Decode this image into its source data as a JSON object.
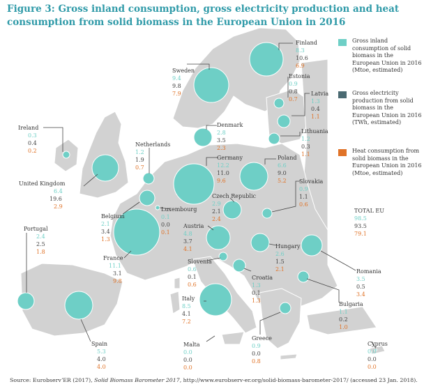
{
  "title": "Figure 3: Gross inland consumption, gross electricity production and heat consumption from solid biomass in the European Union in 2016",
  "colors": {
    "title": "#2f9aa8",
    "consumption": "#6ecfc6",
    "electricity": "#4a6a72",
    "heat": "#e07328",
    "land": "#d2d2d2",
    "sea": "#ffffff"
  },
  "legend": [
    {
      "color": "#6ecfc6",
      "text": "Gross inland consumption of solid biomass in the European Union in 2016 (Mtoe, estimated)"
    },
    {
      "color": "#4a6a72",
      "text": "Gross electricity production from solid biomass in the European Union in 2016 (TWh, estimated)"
    },
    {
      "color": "#e07328",
      "text": "Heat consumption from solid biomass in the European Union in 2016 (Mtoe, estimated)"
    }
  ],
  "total": {
    "label": "TOTAL EU",
    "consumption": "98.5",
    "electricity": "93.5",
    "heat": "79.1"
  },
  "countries": [
    {
      "name": "Finland",
      "consumption": "8.3",
      "electricity": "10.6",
      "heat": "6.9"
    },
    {
      "name": "Sweden",
      "consumption": "9.4",
      "electricity": "9.8",
      "heat": "7.9"
    },
    {
      "name": "Estonia",
      "consumption": "0.9",
      "electricity": "0.8",
      "heat": "0.7"
    },
    {
      "name": "Latvia",
      "consumption": "1.3",
      "electricity": "0.4",
      "heat": "1.1"
    },
    {
      "name": "Lithuania",
      "consumption": "1.2",
      "electricity": "0.3",
      "heat": "1.1"
    },
    {
      "name": "Denmark",
      "consumption": "2.8",
      "electricity": "3.5",
      "heat": "2.3"
    },
    {
      "name": "Ireland",
      "consumption": "0.3",
      "electricity": "0.4",
      "heat": "0.2"
    },
    {
      "name": "Netherlands",
      "consumption": "1.2",
      "electricity": "1.9",
      "heat": "0.7"
    },
    {
      "name": "Germany",
      "consumption": "12.2",
      "electricity": "11.0",
      "heat": "9.6"
    },
    {
      "name": "Poland",
      "consumption": "6.6",
      "electricity": "9.0",
      "heat": "5.2"
    },
    {
      "name": "United Kingdom",
      "consumption": "6.4",
      "electricity": "19.6",
      "heat": "2.9"
    },
    {
      "name": "Slovakia",
      "consumption": "0.9",
      "electricity": "1.1",
      "heat": "0.6"
    },
    {
      "name": "Czech Republic",
      "consumption": "2.9",
      "electricity": "2.1",
      "heat": "2.4"
    },
    {
      "name": "Belgium",
      "consumption": "2.1",
      "electricity": "3.4",
      "heat": "1.3"
    },
    {
      "name": "Luxembourg",
      "consumption": "0.1",
      "electricity": "0.0",
      "heat": "0.1"
    },
    {
      "name": "Portugal",
      "consumption": "2.4",
      "electricity": "2.5",
      "heat": "1.8"
    },
    {
      "name": "Austria",
      "consumption": "4.8",
      "electricity": "3.7",
      "heat": "4.1"
    },
    {
      "name": "Hungary",
      "consumption": "2.6",
      "electricity": "1.5",
      "heat": "2.1"
    },
    {
      "name": "France",
      "consumption": "11.1",
      "electricity": "3.1",
      "heat": "9.8"
    },
    {
      "name": "Slovenia",
      "consumption": "0.6",
      "electricity": "0.1",
      "heat": "0.6"
    },
    {
      "name": "Romania",
      "consumption": "3.5",
      "electricity": "0.5",
      "heat": "3.4"
    },
    {
      "name": "Croatia",
      "consumption": "1.3",
      "electricity": "0.1",
      "heat": "1.3"
    },
    {
      "name": "Italy",
      "consumption": "8.5",
      "electricity": "4.1",
      "heat": "7.2"
    },
    {
      "name": "Bulgaria",
      "consumption": "1.1",
      "electricity": "0.2",
      "heat": "1.0"
    },
    {
      "name": "Spain",
      "consumption": "5.3",
      "electricity": "4.0",
      "heat": "4.0"
    },
    {
      "name": "Greece",
      "consumption": "0.9",
      "electricity": "0.0",
      "heat": "0.8"
    },
    {
      "name": "Malta",
      "consumption": "0.0",
      "electricity": "0.0",
      "heat": "0.0"
    },
    {
      "name": "Cyprus",
      "consumption": "0.0",
      "electricity": "0.0",
      "heat": "0.0"
    }
  ],
  "source": {
    "prefix": "Source: EurobservʼER (2017), ",
    "italic": "Solid Biomass Barometer 2017",
    "suffix": ", http://www.eurobserv-er.org/solid-biomass-barometer-2017/ (accessed 23 Jan. 2018)."
  }
}
